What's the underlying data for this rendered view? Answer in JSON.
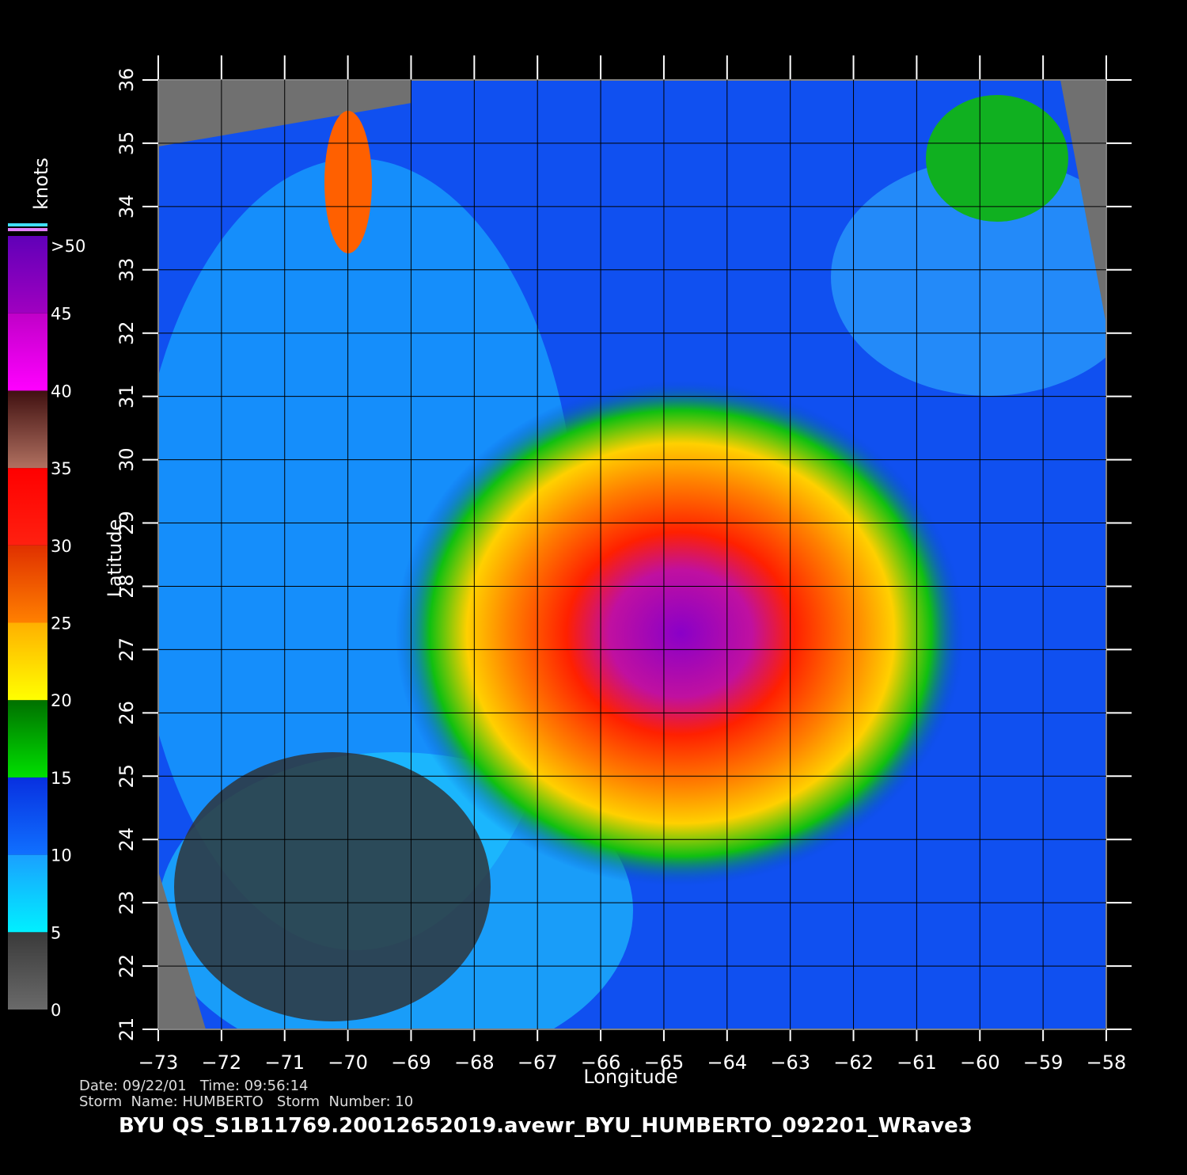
{
  "chart_data": {
    "type": "map",
    "xlabel": "Longitude",
    "ylabel": "Latitude",
    "xlim": [
      -73,
      -58
    ],
    "ylim": [
      21,
      36
    ],
    "xticks": [
      {
        "value": -73,
        "label": "−73"
      },
      {
        "value": -72,
        "label": "−72"
      },
      {
        "value": -71,
        "label": "−71"
      },
      {
        "value": -70,
        "label": "−70"
      },
      {
        "value": -69,
        "label": "−69"
      },
      {
        "value": -68,
        "label": "−68"
      },
      {
        "value": -67,
        "label": "−67"
      },
      {
        "value": -66,
        "label": "−66"
      },
      {
        "value": -65,
        "label": "−65"
      },
      {
        "value": -64,
        "label": "−64"
      },
      {
        "value": -63,
        "label": "−63"
      },
      {
        "value": -62,
        "label": "−62"
      },
      {
        "value": -61,
        "label": "−61"
      },
      {
        "value": -60,
        "label": "−60"
      },
      {
        "value": -59,
        "label": "−59"
      },
      {
        "value": -58,
        "label": "−58"
      }
    ],
    "yticks": [
      21,
      22,
      23,
      24,
      25,
      26,
      27,
      28,
      29,
      30,
      31,
      32,
      33,
      34,
      35,
      36
    ],
    "grid": true,
    "colorbar": {
      "label": "knots",
      "lim": [
        0,
        50
      ],
      "ticks": [
        0,
        5,
        10,
        15,
        20,
        25,
        30,
        35,
        40,
        45,
        {
          "value": 50,
          "label": ">50"
        }
      ],
      "colors": [
        [
          "#6a6a6a",
          "#3a3a3a"
        ],
        [
          "#00f0ff",
          "#1aa0ff"
        ],
        [
          "#1070ff",
          "#0830e0"
        ],
        [
          "#00e000",
          "#007000"
        ],
        [
          "#ffff00",
          "#ffb000"
        ],
        [
          "#ff8000",
          "#e03000"
        ],
        [
          "#ff2010",
          "#ff0000"
        ],
        [
          "#b07060",
          "#401010"
        ],
        [
          "#ff00ff",
          "#c000c8"
        ],
        [
          "#a000c0",
          "#6000b8"
        ]
      ]
    },
    "date_line": "Date: 09/22/01   Time: 09:56:14",
    "storm_line": "Storm  Name: HUMBERTO   Storm  Number: 10",
    "title": "BYU  QS_S1B11769.20012652019.avewr_BYU_HUMBERTO_092201_WRave3"
  }
}
